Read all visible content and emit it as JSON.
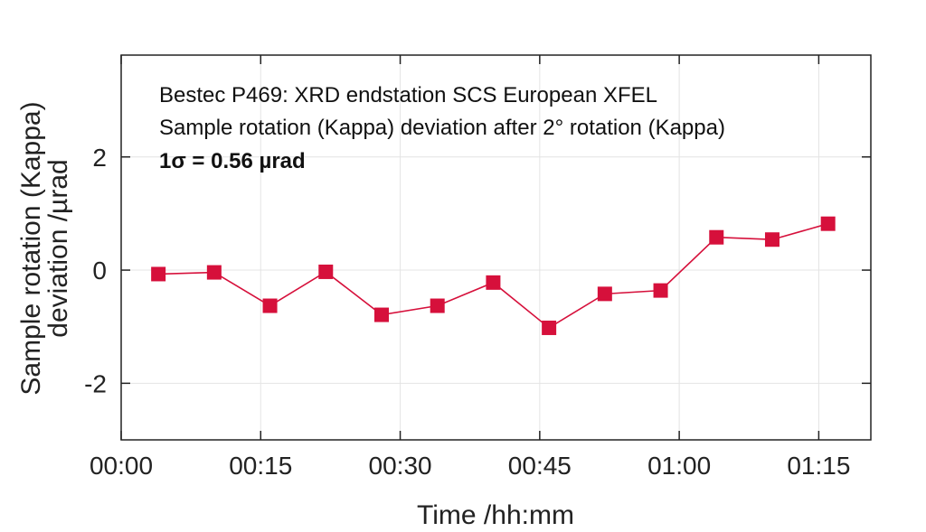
{
  "chart_data": {
    "type": "line",
    "annotations": [
      "Bestec P469: XRD endstation SCS European XFEL",
      "Sample rotation (Kappa) deviation after 2° rotation (Kappa)",
      "1σ = 0.56 µrad"
    ],
    "xlabel": "Time /hh:mm",
    "ylabel": [
      "Sample rotation (Kappa)",
      "deviation /µrad"
    ],
    "x_ticks": [
      "00:00",
      "00:15",
      "00:30",
      "00:45",
      "01:00",
      "01:15"
    ],
    "y_ticks": [
      "2",
      "0",
      "-2"
    ],
    "xlim_minutes": [
      0,
      80.6
    ],
    "ylim": [
      -3,
      3.8
    ],
    "grid": true,
    "legend": "none",
    "marker": "square",
    "color": "#d6103b",
    "series": [
      {
        "x": [
          "00:04",
          "00:10",
          "00:16",
          "00:22",
          "00:28",
          "00:34",
          "00:40",
          "00:46",
          "00:52",
          "00:58",
          "01:04",
          "01:10",
          "01:16"
        ],
        "values": [
          -0.07,
          -0.04,
          -0.63,
          -0.03,
          -0.79,
          -0.63,
          -0.22,
          -1.02,
          -0.42,
          -0.36,
          0.58,
          0.54,
          0.82
        ]
      }
    ]
  }
}
